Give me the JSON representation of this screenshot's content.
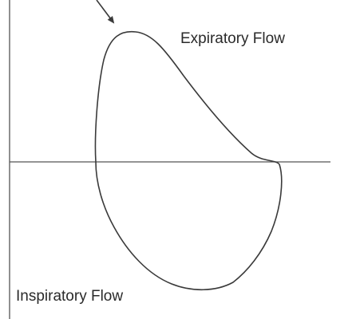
{
  "labels": {
    "expiratory": "Expiratory Flow",
    "inspiratory": "Inspiratory Flow"
  },
  "colors": {
    "line": "#3a3a3a",
    "text": "#2a2a2a",
    "background": "#ffffff"
  },
  "icons": {
    "pointer": "arrow-pointing-to-peak-flow"
  }
}
